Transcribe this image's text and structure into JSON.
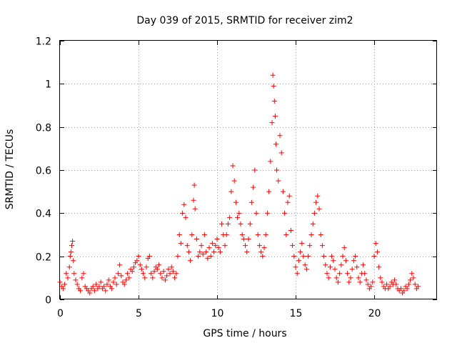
{
  "chart_data": {
    "type": "scatter",
    "title": "Day 039 of 2015, SRMTID for receiver zim2",
    "xlabel": "GPS time / hours",
    "ylabel": "SRMTID / TECUs",
    "xlim": [
      0,
      24
    ],
    "ylim": [
      0,
      1.2
    ],
    "x_ticks": [
      0,
      5,
      10,
      15,
      20
    ],
    "y_ticks": [
      0,
      0.2,
      0.4,
      0.6,
      0.8,
      1,
      1.2
    ],
    "x_tick_labels": [
      "0",
      "5",
      "10",
      "15",
      "20"
    ],
    "y_tick_labels": [
      "0",
      "0.2",
      "0.4",
      "0.6",
      "0.8",
      "1",
      "1.2"
    ],
    "grid": true,
    "marker": "+",
    "color": "#ff0000",
    "series": [
      {
        "name": "SRMTID",
        "points": [
          [
            0.0,
            0.08
          ],
          [
            0.1,
            0.06
          ],
          [
            0.2,
            0.05
          ],
          [
            0.3,
            0.07
          ],
          [
            0.4,
            0.12
          ],
          [
            0.5,
            0.1
          ],
          [
            0.6,
            0.15
          ],
          [
            0.65,
            0.2
          ],
          [
            0.7,
            0.22
          ],
          [
            0.75,
            0.25
          ],
          [
            0.8,
            0.27
          ],
          [
            0.85,
            0.18
          ],
          [
            0.9,
            0.12
          ],
          [
            1.0,
            0.09
          ],
          [
            1.1,
            0.07
          ],
          [
            1.2,
            0.05
          ],
          [
            1.3,
            0.04
          ],
          [
            1.4,
            0.1
          ],
          [
            1.5,
            0.12
          ],
          [
            1.6,
            0.06
          ],
          [
            1.7,
            0.05
          ],
          [
            1.8,
            0.04
          ],
          [
            1.9,
            0.03
          ],
          [
            2.0,
            0.05
          ],
          [
            2.1,
            0.06
          ],
          [
            2.2,
            0.04
          ],
          [
            2.3,
            0.07
          ],
          [
            2.4,
            0.05
          ],
          [
            2.5,
            0.06
          ],
          [
            2.6,
            0.08
          ],
          [
            2.7,
            0.05
          ],
          [
            2.8,
            0.06
          ],
          [
            2.9,
            0.04
          ],
          [
            3.0,
            0.07
          ],
          [
            3.1,
            0.09
          ],
          [
            3.2,
            0.06
          ],
          [
            3.3,
            0.05
          ],
          [
            3.4,
            0.08
          ],
          [
            3.5,
            0.1
          ],
          [
            3.6,
            0.07
          ],
          [
            3.7,
            0.12
          ],
          [
            3.8,
            0.16
          ],
          [
            3.9,
            0.11
          ],
          [
            4.0,
            0.08
          ],
          [
            4.1,
            0.07
          ],
          [
            4.2,
            0.09
          ],
          [
            4.3,
            0.12
          ],
          [
            4.4,
            0.1
          ],
          [
            4.5,
            0.14
          ],
          [
            4.6,
            0.13
          ],
          [
            4.7,
            0.15
          ],
          [
            4.8,
            0.17
          ],
          [
            4.9,
            0.18
          ],
          [
            5.0,
            0.2
          ],
          [
            5.1,
            0.16
          ],
          [
            5.2,
            0.14
          ],
          [
            5.3,
            0.12
          ],
          [
            5.4,
            0.1
          ],
          [
            5.5,
            0.15
          ],
          [
            5.6,
            0.19
          ],
          [
            5.7,
            0.2
          ],
          [
            5.8,
            0.12
          ],
          [
            5.9,
            0.1
          ],
          [
            6.0,
            0.13
          ],
          [
            6.1,
            0.15
          ],
          [
            6.2,
            0.14
          ],
          [
            6.3,
            0.16
          ],
          [
            6.4,
            0.12
          ],
          [
            6.5,
            0.1
          ],
          [
            6.6,
            0.13
          ],
          [
            6.7,
            0.09
          ],
          [
            6.8,
            0.11
          ],
          [
            6.9,
            0.14
          ],
          [
            7.0,
            0.12
          ],
          [
            7.1,
            0.15
          ],
          [
            7.2,
            0.13
          ],
          [
            7.3,
            0.1
          ],
          [
            7.4,
            0.12
          ],
          [
            7.5,
            0.2
          ],
          [
            7.6,
            0.3
          ],
          [
            7.7,
            0.26
          ],
          [
            7.8,
            0.4
          ],
          [
            7.9,
            0.44
          ],
          [
            8.0,
            0.38
          ],
          [
            8.1,
            0.25
          ],
          [
            8.2,
            0.22
          ],
          [
            8.3,
            0.18
          ],
          [
            8.4,
            0.3
          ],
          [
            8.5,
            0.46
          ],
          [
            8.55,
            0.53
          ],
          [
            8.6,
            0.42
          ],
          [
            8.7,
            0.28
          ],
          [
            8.8,
            0.2
          ],
          [
            8.9,
            0.22
          ],
          [
            9.0,
            0.25
          ],
          [
            9.1,
            0.21
          ],
          [
            9.2,
            0.3
          ],
          [
            9.3,
            0.22
          ],
          [
            9.4,
            0.19
          ],
          [
            9.5,
            0.24
          ],
          [
            9.6,
            0.2
          ],
          [
            9.7,
            0.26
          ],
          [
            9.8,
            0.22
          ],
          [
            9.9,
            0.25
          ],
          [
            10.0,
            0.28
          ],
          [
            10.1,
            0.24
          ],
          [
            10.2,
            0.22
          ],
          [
            10.3,
            0.35
          ],
          [
            10.4,
            0.3
          ],
          [
            10.5,
            0.25
          ],
          [
            10.6,
            0.3
          ],
          [
            10.7,
            0.35
          ],
          [
            10.8,
            0.38
          ],
          [
            10.9,
            0.5
          ],
          [
            11.0,
            0.62
          ],
          [
            11.1,
            0.55
          ],
          [
            11.2,
            0.45
          ],
          [
            11.3,
            0.38
          ],
          [
            11.4,
            0.4
          ],
          [
            11.5,
            0.35
          ],
          [
            11.6,
            0.3
          ],
          [
            11.7,
            0.28
          ],
          [
            11.8,
            0.25
          ],
          [
            11.9,
            0.22
          ],
          [
            12.0,
            0.28
          ],
          [
            12.1,
            0.35
          ],
          [
            12.2,
            0.45
          ],
          [
            12.3,
            0.52
          ],
          [
            12.4,
            0.6
          ],
          [
            12.5,
            0.4
          ],
          [
            12.6,
            0.3
          ],
          [
            12.7,
            0.25
          ],
          [
            12.8,
            0.22
          ],
          [
            12.9,
            0.2
          ],
          [
            13.0,
            0.24
          ],
          [
            13.1,
            0.3
          ],
          [
            13.2,
            0.4
          ],
          [
            13.3,
            0.5
          ],
          [
            13.4,
            0.64
          ],
          [
            13.5,
            0.82
          ],
          [
            13.55,
            1.04
          ],
          [
            13.6,
            0.99
          ],
          [
            13.65,
            0.92
          ],
          [
            13.7,
            0.85
          ],
          [
            13.75,
            0.72
          ],
          [
            13.8,
            0.6
          ],
          [
            13.9,
            0.55
          ],
          [
            14.0,
            0.76
          ],
          [
            14.1,
            0.68
          ],
          [
            14.2,
            0.5
          ],
          [
            14.3,
            0.4
          ],
          [
            14.4,
            0.3
          ],
          [
            14.5,
            0.45
          ],
          [
            14.6,
            0.48
          ],
          [
            14.7,
            0.32
          ],
          [
            14.8,
            0.25
          ],
          [
            14.9,
            0.2
          ],
          [
            15.0,
            0.15
          ],
          [
            15.1,
            0.12
          ],
          [
            15.2,
            0.18
          ],
          [
            15.3,
            0.22
          ],
          [
            15.4,
            0.26
          ],
          [
            15.5,
            0.2
          ],
          [
            15.6,
            0.16
          ],
          [
            15.7,
            0.14
          ],
          [
            15.8,
            0.2
          ],
          [
            15.9,
            0.25
          ],
          [
            16.0,
            0.3
          ],
          [
            16.1,
            0.35
          ],
          [
            16.2,
            0.4
          ],
          [
            16.3,
            0.45
          ],
          [
            16.4,
            0.48
          ],
          [
            16.5,
            0.42
          ],
          [
            16.6,
            0.3
          ],
          [
            16.7,
            0.25
          ],
          [
            16.8,
            0.2
          ],
          [
            16.9,
            0.16
          ],
          [
            17.0,
            0.12
          ],
          [
            17.1,
            0.1
          ],
          [
            17.2,
            0.15
          ],
          [
            17.3,
            0.2
          ],
          [
            17.4,
            0.18
          ],
          [
            17.5,
            0.14
          ],
          [
            17.6,
            0.1
          ],
          [
            17.7,
            0.08
          ],
          [
            17.8,
            0.12
          ],
          [
            17.9,
            0.16
          ],
          [
            18.0,
            0.2
          ],
          [
            18.1,
            0.24
          ],
          [
            18.2,
            0.18
          ],
          [
            18.3,
            0.12
          ],
          [
            18.4,
            0.08
          ],
          [
            18.5,
            0.1
          ],
          [
            18.6,
            0.14
          ],
          [
            18.7,
            0.18
          ],
          [
            18.8,
            0.2
          ],
          [
            18.9,
            0.15
          ],
          [
            19.0,
            0.1
          ],
          [
            19.1,
            0.08
          ],
          [
            19.2,
            0.12
          ],
          [
            19.3,
            0.16
          ],
          [
            19.4,
            0.12
          ],
          [
            19.5,
            0.09
          ],
          [
            19.6,
            0.07
          ],
          [
            19.7,
            0.05
          ],
          [
            19.8,
            0.06
          ],
          [
            19.9,
            0.08
          ],
          [
            20.0,
            0.2
          ],
          [
            20.1,
            0.26
          ],
          [
            20.2,
            0.22
          ],
          [
            20.3,
            0.15
          ],
          [
            20.4,
            0.1
          ],
          [
            20.5,
            0.08
          ],
          [
            20.6,
            0.06
          ],
          [
            20.7,
            0.05
          ],
          [
            20.8,
            0.07
          ],
          [
            20.9,
            0.05
          ],
          [
            21.0,
            0.06
          ],
          [
            21.1,
            0.08
          ],
          [
            21.2,
            0.07
          ],
          [
            21.3,
            0.09
          ],
          [
            21.4,
            0.07
          ],
          [
            21.5,
            0.05
          ],
          [
            21.6,
            0.04
          ],
          [
            21.7,
            0.05
          ],
          [
            21.8,
            0.03
          ],
          [
            21.9,
            0.04
          ],
          [
            22.0,
            0.06
          ],
          [
            22.1,
            0.05
          ],
          [
            22.2,
            0.07
          ],
          [
            22.3,
            0.09
          ],
          [
            22.4,
            0.12
          ],
          [
            22.5,
            0.1
          ],
          [
            22.6,
            0.07
          ],
          [
            22.7,
            0.05
          ],
          [
            22.8,
            0.06
          ]
        ]
      }
    ]
  }
}
